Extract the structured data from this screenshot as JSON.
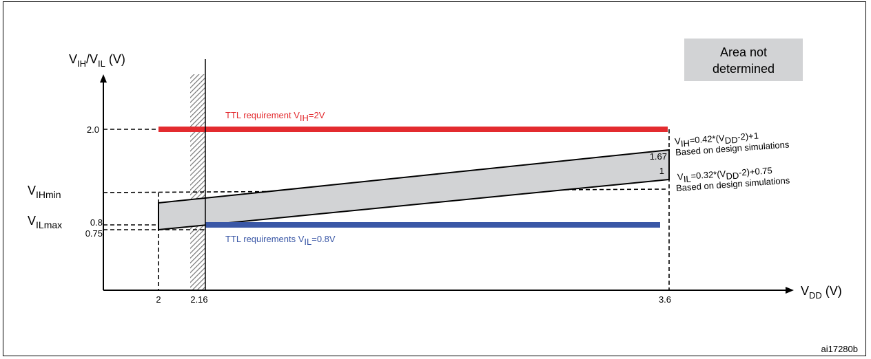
{
  "figure_id": "ai17280b",
  "colors": {
    "ttl_high": "#e32b2f",
    "ttl_low": "#3a57a6",
    "band_fill": "#d2d3d5",
    "legend_fill": "#d2d3d5",
    "hatch": "#777777"
  },
  "y_axis": {
    "label_main": "V",
    "label_sub1": "IH",
    "label_sep": "/V",
    "label_sub2": "IL",
    "label_unit": " (V)"
  },
  "x_axis": {
    "label_main": "V",
    "label_sub": "DD",
    "label_unit": " (V)"
  },
  "y_ticks": {
    "v20": "2.0",
    "v08": "0.8",
    "v075": "0.75"
  },
  "x_ticks": {
    "v2": "2",
    "v216": "2.16",
    "v36": "3.6"
  },
  "side_labels": {
    "vih_main": "V",
    "vih_sub": "IHmin",
    "vil_main": "V",
    "vil_sub": "ILmax"
  },
  "right_values": {
    "v167": "1.67",
    "v1": "1"
  },
  "legend": {
    "line1": "Area not",
    "line2": "determined"
  },
  "ttl_high": {
    "pre": "TTL requirement  V",
    "sub": "IH",
    "post": "=2V"
  },
  "ttl_low": {
    "pre": "TTL requirements V",
    "sub": "IL",
    "post": "=0.8V"
  },
  "vih_formula": {
    "pre": "V",
    "sub1": "IH",
    "mid": "=0.42*(V",
    "sub2": "DD",
    "post": "-2)+1",
    "note": "Based on design simulations"
  },
  "vil_formula": {
    "pre": "V",
    "sub1": "IL",
    "mid": "=0.32*(V",
    "sub2": "DD",
    "post": "-2)+0.75",
    "note": "Based on design simulations"
  }
}
